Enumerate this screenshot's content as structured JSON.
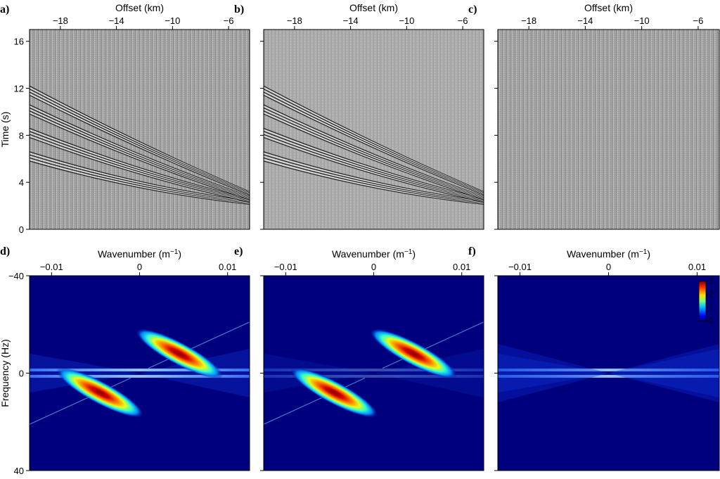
{
  "chart_data": [
    {
      "panel": "a)",
      "type": "heatmap",
      "content": "seismic-gather",
      "variant": "noisy",
      "title": "",
      "xlabel": "Offset (km)",
      "ylabel": "Time (s)",
      "xlim": [
        -20.2,
        -4.5
      ],
      "ylim": [
        17,
        0
      ],
      "x_ticks": [
        -18,
        -14,
        -10,
        -6
      ],
      "x_tick_labels": [
        "−18",
        "−14",
        "−10",
        "−6"
      ],
      "y_ticks": [
        0,
        4,
        8,
        12,
        16
      ],
      "y_tick_labels": [
        "0",
        "4",
        "8",
        "12",
        "16"
      ],
      "events": [
        {
          "start": [
            -20.2,
            6.6
          ],
          "end": [
            -4.5,
            2.4
          ]
        },
        {
          "start": [
            -20.2,
            8.6
          ],
          "end": [
            -4.5,
            2.6
          ]
        },
        {
          "start": [
            -20.2,
            10.6
          ],
          "end": [
            -4.5,
            2.8
          ]
        },
        {
          "start": [
            -20.2,
            12.2
          ],
          "end": [
            -4.5,
            3.2
          ]
        }
      ]
    },
    {
      "panel": "b)",
      "type": "heatmap",
      "content": "seismic-gather",
      "variant": "denoised",
      "title": "",
      "xlabel": "Offset (km)",
      "ylabel": "",
      "xlim": [
        -20.2,
        -4.5
      ],
      "ylim": [
        17,
        0
      ],
      "x_ticks": [
        -18,
        -14,
        -10,
        -6
      ],
      "x_tick_labels": [
        "−18",
        "−14",
        "−10",
        "−6"
      ],
      "y_ticks": [
        0,
        4,
        8,
        12,
        16
      ],
      "events": [
        {
          "start": [
            -20.2,
            6.6
          ],
          "end": [
            -4.5,
            2.4
          ]
        },
        {
          "start": [
            -20.2,
            8.6
          ],
          "end": [
            -4.5,
            2.6
          ]
        },
        {
          "start": [
            -20.2,
            10.6
          ],
          "end": [
            -4.5,
            2.8
          ]
        },
        {
          "start": [
            -20.2,
            12.2
          ],
          "end": [
            -4.5,
            3.2
          ]
        }
      ]
    },
    {
      "panel": "c)",
      "type": "heatmap",
      "content": "seismic-gather",
      "variant": "removed-noise",
      "title": "",
      "xlabel": "Offset (km)",
      "ylabel": "",
      "xlim": [
        -20.2,
        -4.5
      ],
      "ylim": [
        17,
        0
      ],
      "x_ticks": [
        -18,
        -14,
        -10,
        -6
      ],
      "x_tick_labels": [
        "−18",
        "−14",
        "−10",
        "−6"
      ],
      "y_ticks": [
        0,
        4,
        8,
        12,
        16
      ],
      "events": []
    },
    {
      "panel": "d)",
      "type": "heatmap",
      "content": "fk-spectrum",
      "variant": "noisy",
      "title": "",
      "xlabel": "Wavenumber (m",
      "xlabel_sup": "−1",
      "xlabel_end": ")",
      "ylabel": "Frequency (Hz)",
      "xlim": [
        -0.0125,
        0.0125
      ],
      "ylim": [
        -40,
        40
      ],
      "x_ticks": [
        -0.01,
        0,
        0.01
      ],
      "x_tick_labels": [
        "−0.01",
        "0",
        "0.01"
      ],
      "y_ticks": [
        -40,
        0,
        40
      ],
      "y_tick_labels": [
        "−40",
        "0",
        "40"
      ],
      "colormap": "jet",
      "clim": [
        0,
        3
      ]
    },
    {
      "panel": "e)",
      "type": "heatmap",
      "content": "fk-spectrum",
      "variant": "denoised",
      "title": "",
      "xlabel": "Wavenumber (m",
      "xlabel_sup": "−1",
      "xlabel_end": ")",
      "ylabel": "",
      "xlim": [
        -0.0125,
        0.0125
      ],
      "ylim": [
        -40,
        40
      ],
      "x_ticks": [
        -0.01,
        0,
        0.01
      ],
      "x_tick_labels": [
        "−0.01",
        "0",
        "0.01"
      ],
      "y_ticks": [
        -40,
        0,
        40
      ],
      "colormap": "jet",
      "clim": [
        0,
        3
      ]
    },
    {
      "panel": "f)",
      "type": "heatmap",
      "content": "fk-spectrum",
      "variant": "removed-noise",
      "title": "",
      "xlabel": "Wavenumber (m",
      "xlabel_sup": "−1",
      "xlabel_end": ")",
      "ylabel": "",
      "xlim": [
        -0.0125,
        0.0125
      ],
      "ylim": [
        -40,
        40
      ],
      "x_ticks": [
        -0.01,
        0,
        0.01
      ],
      "x_tick_labels": [
        "−0.01",
        "0",
        "0.01"
      ],
      "y_ticks": [
        -40,
        0,
        40
      ],
      "colormap": "jet",
      "clim": [
        0,
        3
      ],
      "colorbar": {
        "ticks": [
          0,
          1,
          2,
          3
        ],
        "labels": [
          "0",
          "1",
          "2",
          "3"
        ]
      }
    }
  ],
  "colors": {
    "gather_background": "#a6a6a6",
    "fk_background": "#00007f",
    "axis": "#000000"
  }
}
